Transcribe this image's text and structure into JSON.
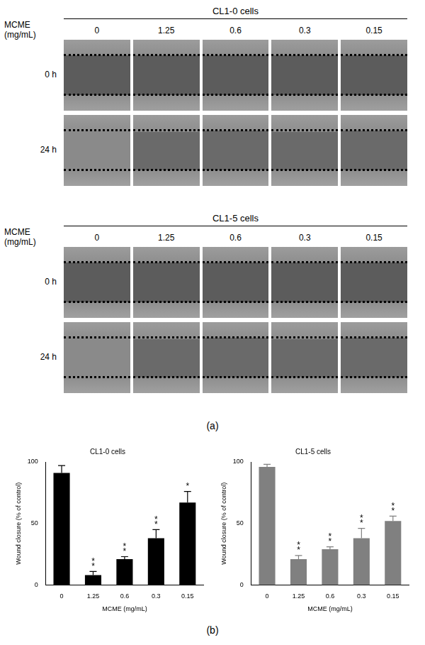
{
  "panel_a": {
    "x_label": "MCME (mg/mL)",
    "columns": [
      "0",
      "1.25",
      "0.6",
      "0.3",
      "0.15"
    ],
    "rows": [
      "0 h",
      "24 h"
    ],
    "groups": [
      "CL1-0 cells",
      "CL1-5 cells"
    ]
  },
  "panel_labels": [
    "(a)",
    "(b)"
  ],
  "chart_data": [
    {
      "type": "bar",
      "title": "CL1-0 cells",
      "x_label": "MCME (mg/mL)",
      "y_label": "Wound closure (% of control)",
      "categories": [
        "0",
        "1.25",
        "0.6",
        "0.3",
        "0.15"
      ],
      "values": [
        91,
        8,
        21,
        38,
        67
      ],
      "errors": [
        6,
        3,
        2,
        7,
        9
      ],
      "significance": [
        null,
        "**",
        "**",
        "**",
        "*"
      ],
      "color": "#000000",
      "ylim": [
        0,
        100
      ],
      "yticks": [
        0,
        50,
        100
      ],
      "grid": false
    },
    {
      "type": "bar",
      "title": "CL1-5 cells",
      "x_label": "MCME (mg/mL)",
      "y_label": "Wound closure (% of control)",
      "categories": [
        "0",
        "1.25",
        "0.6",
        "0.3",
        "0.15"
      ],
      "values": [
        96,
        21,
        29,
        38,
        52
      ],
      "errors": [
        2,
        3,
        2,
        8,
        4
      ],
      "significance": [
        null,
        "**",
        "**",
        "**",
        "**"
      ],
      "color": "#808080",
      "ylim": [
        0,
        100
      ],
      "yticks": [
        0,
        50,
        100
      ],
      "grid": false
    }
  ]
}
